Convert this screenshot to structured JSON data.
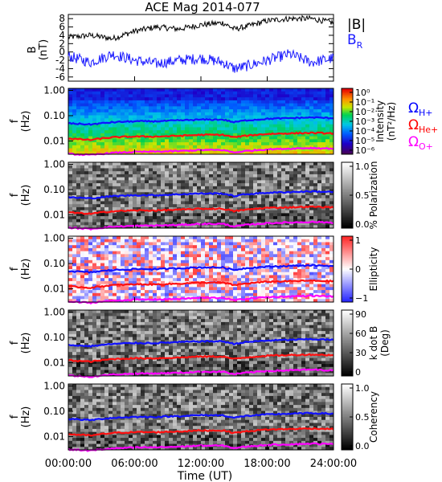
{
  "title": "ACE Mag 2014-077",
  "legend_mag": {
    "b_total": "|B|",
    "b_r": "B",
    "b_r_sub": "R"
  },
  "legend_gyro": [
    {
      "symbol": "Ω",
      "sub": "H+",
      "color": "#0000ff"
    },
    {
      "symbol": "Ω",
      "sub": "He+",
      "color": "#ff0000"
    },
    {
      "symbol": "Ω",
      "sub": "O+",
      "color": "#ff00ff"
    }
  ],
  "colors": {
    "h_plus": "#1010ff",
    "he_plus": "#ff1010",
    "o_plus": "#ff00ff",
    "b_total": "#000000",
    "b_r": "#1a1aff"
  },
  "x_axis": {
    "label": "Time (UT)",
    "ticks": [
      "00:00:00",
      "06:00:00",
      "12:00:00",
      "18:00:00",
      "24:00:00"
    ],
    "range_hours": [
      0,
      24
    ]
  },
  "chart_data": [
    {
      "type": "line",
      "title": "ACE Mag 2014-077",
      "ylabel": "B",
      "yunit": "(nT)",
      "ylim": [
        -7,
        9
      ],
      "yticks": [
        "-6",
        "-4",
        "-2",
        "0",
        "2",
        "4",
        "6",
        "8"
      ],
      "x_hours": [
        0,
        2,
        4,
        6,
        8,
        10,
        12,
        14,
        15,
        16,
        18,
        20,
        22,
        24
      ],
      "series": [
        {
          "name": "|B|",
          "values": [
            3.5,
            4.0,
            3.2,
            5.0,
            6.0,
            5.5,
            6.5,
            7.0,
            5.5,
            6.0,
            7.5,
            8.0,
            8.0,
            7.0
          ]
        },
        {
          "name": "B R",
          "values": [
            -1.0,
            -2.5,
            -0.5,
            -2.0,
            -2.8,
            -2.0,
            -1.5,
            -2.5,
            -4.0,
            -3.5,
            -2.0,
            -0.5,
            -2.5,
            -1.5
          ]
        }
      ]
    },
    {
      "type": "heatmap",
      "ylabel": "f",
      "yunit": "(Hz)",
      "yscale": "log",
      "ylim": [
        0.003,
        1.2
      ],
      "yticks": [
        "1.00",
        "0.10",
        "0.01"
      ],
      "colorbar": {
        "label": "Intensity",
        "unit": "(nT²/Hz)",
        "ticks": [
          "10⁰",
          "10⁻¹",
          "10⁻²",
          "10⁻³",
          "10⁻⁴",
          "10⁻⁵",
          "10⁻⁶"
        ],
        "scale": "rainbow"
      },
      "gyro_x_hours": [
        0,
        2,
        4,
        6,
        8,
        10,
        12,
        14,
        15,
        16,
        18,
        20,
        22,
        24
      ],
      "gyro_h_plus_hz": [
        0.05,
        0.045,
        0.055,
        0.06,
        0.06,
        0.065,
        0.07,
        0.07,
        0.055,
        0.065,
        0.075,
        0.08,
        0.085,
        0.08
      ],
      "gyro_he_plus_hz": [
        0.0125,
        0.011,
        0.014,
        0.015,
        0.015,
        0.016,
        0.0175,
        0.0175,
        0.014,
        0.016,
        0.019,
        0.02,
        0.021,
        0.02
      ],
      "gyro_o_plus_hz": [
        0.0031,
        0.0028,
        0.0034,
        0.0037,
        0.0038,
        0.004,
        0.0044,
        0.0044,
        0.0035,
        0.004,
        0.0047,
        0.005,
        0.0053,
        0.005
      ]
    },
    {
      "type": "heatmap",
      "ylabel": "f",
      "yunit": "(Hz)",
      "yscale": "log",
      "yticks": [
        "1.00",
        "0.10",
        "0.01"
      ],
      "colorbar": {
        "label": "% Polarization",
        "ticks": [
          "1.0",
          "0.5",
          "0.0"
        ],
        "scale": "gray"
      }
    },
    {
      "type": "heatmap",
      "ylabel": "f",
      "yunit": "(Hz)",
      "yscale": "log",
      "yticks": [
        "1.00",
        "0.10",
        "0.01"
      ],
      "colorbar": {
        "label": "Ellipticity",
        "ticks": [
          "1",
          "0",
          "−1"
        ],
        "scale": "blue-white-red"
      }
    },
    {
      "type": "heatmap",
      "ylabel": "f",
      "yunit": "(Hz)",
      "yscale": "log",
      "yticks": [
        "1.00",
        "0.10",
        "0.01"
      ],
      "colorbar": {
        "label": "k dot B",
        "unit": "(Deg)",
        "ticks": [
          "90",
          "60",
          "30",
          "0"
        ],
        "scale": "gray"
      }
    },
    {
      "type": "heatmap",
      "ylabel": "f",
      "yunit": "(Hz)",
      "yscale": "log",
      "yticks": [
        "1.00",
        "0.10",
        "0.01"
      ],
      "colorbar": {
        "label": "Coherency",
        "ticks": [
          "1.0",
          "0.5",
          "0.0"
        ],
        "scale": "gray"
      }
    }
  ]
}
